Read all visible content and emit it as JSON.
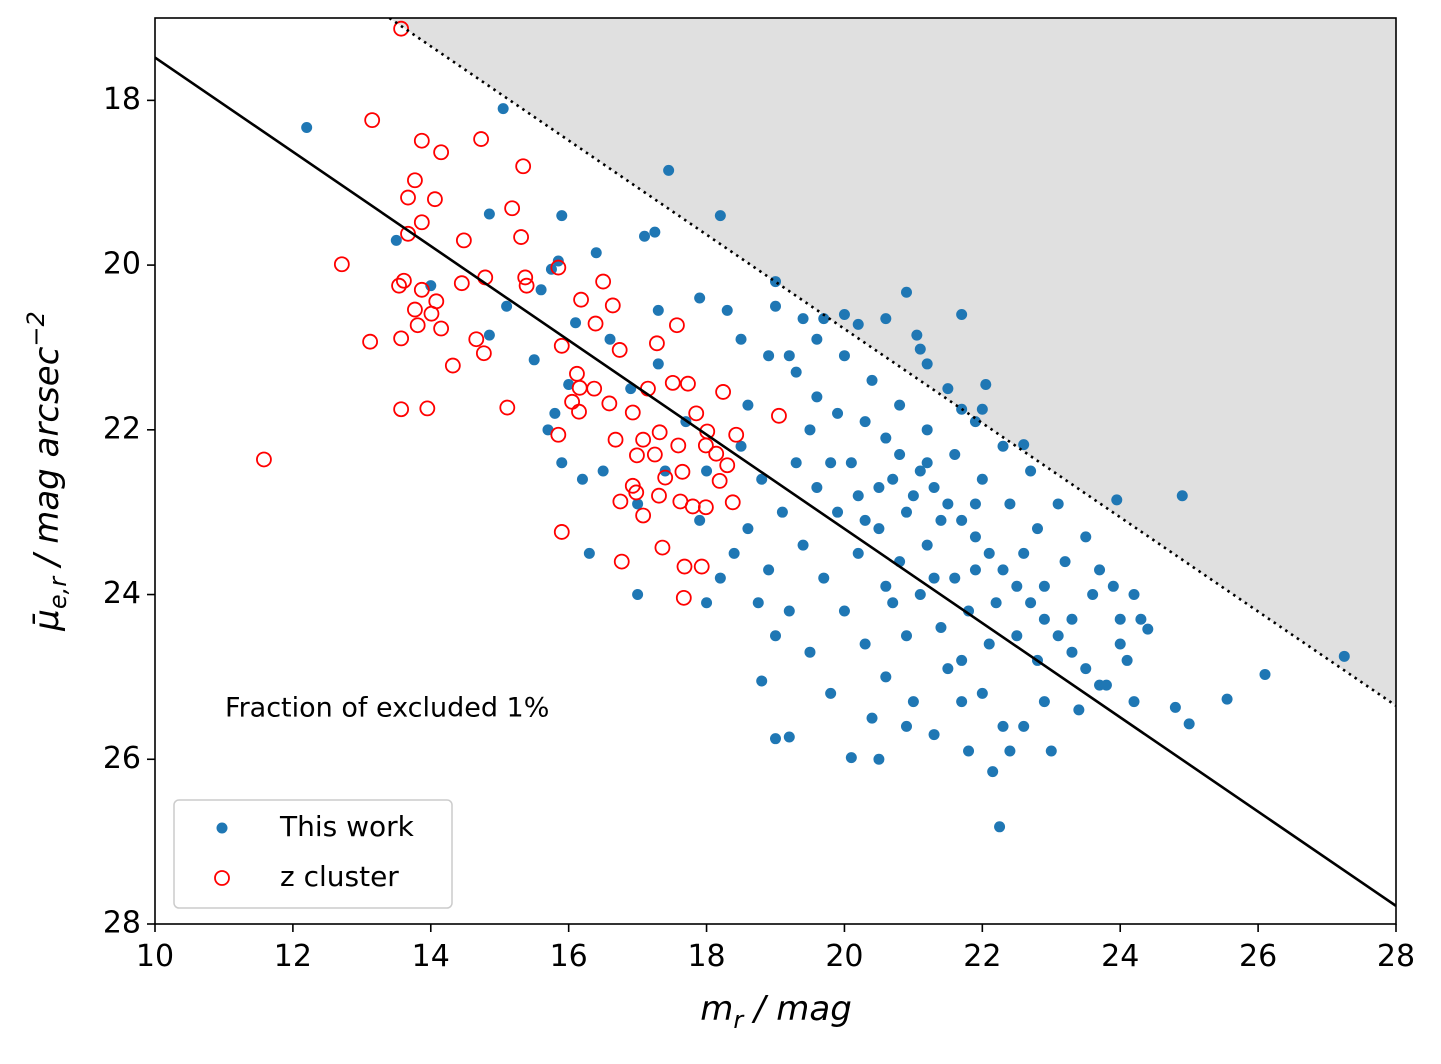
{
  "chart_data": {
    "type": "scatter",
    "xlabel": {
      "main": "m",
      "sub": "r",
      "rest": " / mag"
    },
    "ylabel": {
      "main": "μ̄",
      "sub": "e,r",
      "rest": " / mag arcsec",
      "sup": "−2"
    },
    "annotation": "Fraction of excluded 1%",
    "xlim": [
      10,
      28
    ],
    "xticks": [
      10,
      12,
      14,
      16,
      18,
      20,
      22,
      24,
      26,
      28
    ],
    "ylim": [
      28,
      17
    ],
    "yticks": [
      18,
      20,
      22,
      24,
      26,
      28
    ],
    "legend": "lower left",
    "shade": {
      "x": [
        13.4,
        28
      ],
      "values": [
        17,
        25.35
      ],
      "color": "#e0e0e0"
    },
    "lines": [
      {
        "x": [
          10,
          28
        ],
        "values": [
          17.48,
          27.78
        ],
        "color": "#000000",
        "dash": "solid"
      },
      {
        "x": [
          13.4,
          28
        ],
        "values": [
          17,
          25.35
        ],
        "color": "#000000",
        "dash": "dotted"
      }
    ],
    "series": [
      {
        "name": "This work",
        "color": "#1f77b4",
        "marker": "filled",
        "x": [
          12.2,
          15.05,
          17.45,
          18.2,
          15.9,
          14.85,
          17.1,
          17.25,
          19.0,
          20.9,
          21.7,
          20.6,
          20.2,
          21.05,
          21.1,
          22.05,
          22.0,
          21.7,
          22.6,
          23.95,
          24.9,
          27.25,
          26.1,
          25.55,
          25.0,
          24.8,
          24.4,
          22.25,
          22.15,
          20.5,
          20.1,
          19.0,
          19.2,
          18.8,
          18.75,
          18.0,
          17.0,
          16.3,
          15.9,
          15.8,
          15.5,
          16.4,
          15.85,
          15.6,
          15.75,
          16.1,
          17.3,
          17.9,
          18.3,
          19.0,
          19.4,
          19.7,
          18.5,
          18.9,
          19.3,
          19.6,
          19.9,
          20.3,
          20.6,
          20.8,
          21.1,
          21.3,
          21.5,
          21.7,
          21.9,
          22.1,
          22.3,
          22.5,
          22.7,
          22.9,
          23.1,
          23.3,
          23.5,
          23.7,
          24.0,
          24.2,
          24.1,
          23.6,
          23.2,
          22.8,
          22.4,
          22.0,
          21.6,
          21.2,
          20.8,
          20.4,
          20.0,
          19.5,
          19.8,
          20.2,
          20.5,
          20.8,
          21.1,
          21.4,
          21.7,
          22.0,
          22.3,
          21.0,
          20.6,
          20.3,
          20.0,
          19.7,
          19.4,
          19.1,
          18.8,
          18.5,
          18.6,
          18.9,
          19.2,
          19.5,
          19.8,
          20.4,
          21.3,
          21.8,
          22.6,
          23.0,
          22.9,
          23.4,
          23.8,
          24.2,
          24.0,
          23.9,
          23.5,
          23.1,
          22.7,
          22.3,
          21.9,
          21.5,
          21.2,
          21.6,
          21.2,
          20.9,
          20.7,
          21.4,
          21.8,
          22.1,
          22.5,
          22.2,
          21.9,
          21.3,
          20.6,
          20.2,
          19.9,
          19.6,
          20.1,
          20.5,
          20.9,
          21.5,
          22.8,
          23.3,
          22.6,
          21.0,
          20.3,
          19.3,
          18.4,
          17.9,
          18.2,
          19.0,
          20.7,
          21.7,
          22.4,
          20.9,
          24.3,
          23.7,
          22.9,
          21.9,
          21.2,
          16.6,
          17.3,
          16.9,
          17.7,
          18.0,
          17.4,
          16.5,
          15.7,
          17.0,
          16.2,
          14.0,
          14.85,
          13.5,
          15.1,
          16.0,
          18.6,
          19.2,
          20.0,
          19.6
        ],
        "values": [
          18.33,
          18.1,
          18.85,
          19.4,
          19.4,
          19.38,
          19.65,
          19.6,
          20.2,
          20.33,
          20.6,
          20.65,
          20.72,
          20.85,
          21.02,
          21.45,
          21.75,
          21.75,
          22.18,
          22.85,
          22.8,
          24.75,
          24.97,
          25.27,
          25.57,
          25.37,
          24.42,
          26.82,
          26.15,
          26.0,
          25.98,
          25.75,
          25.73,
          25.05,
          24.1,
          24.1,
          24.0,
          23.5,
          22.4,
          21.8,
          21.15,
          19.85,
          19.95,
          20.3,
          20.05,
          20.7,
          20.55,
          20.4,
          20.55,
          20.5,
          20.65,
          20.65,
          20.9,
          21.1,
          21.3,
          21.6,
          21.8,
          21.9,
          22.1,
          22.3,
          22.5,
          22.7,
          22.9,
          23.1,
          23.3,
          23.5,
          23.7,
          23.9,
          24.1,
          24.3,
          24.5,
          24.7,
          24.9,
          25.1,
          24.3,
          24.0,
          24.8,
          24.0,
          23.6,
          23.2,
          22.9,
          22.6,
          22.3,
          22.0,
          21.7,
          21.4,
          21.1,
          22.0,
          22.4,
          22.8,
          23.2,
          23.6,
          24.0,
          24.4,
          24.8,
          25.2,
          25.6,
          25.3,
          25.0,
          24.6,
          24.2,
          23.8,
          23.4,
          23.0,
          22.6,
          22.2,
          23.2,
          23.7,
          24.2,
          24.7,
          25.2,
          25.5,
          25.7,
          25.9,
          25.6,
          25.9,
          25.3,
          25.4,
          25.1,
          25.3,
          24.6,
          23.9,
          23.3,
          22.9,
          22.5,
          22.2,
          21.9,
          21.5,
          21.2,
          23.8,
          23.4,
          23.0,
          22.6,
          23.1,
          24.2,
          24.6,
          24.5,
          24.1,
          23.7,
          23.8,
          23.9,
          23.5,
          23.0,
          22.7,
          22.4,
          22.7,
          24.5,
          24.9,
          24.8,
          24.3,
          23.5,
          22.8,
          23.1,
          22.4,
          23.5,
          23.1,
          23.8,
          24.5,
          24.1,
          25.3,
          25.9,
          25.6,
          24.3,
          23.7,
          23.9,
          22.9,
          22.4,
          20.9,
          21.2,
          21.5,
          21.9,
          22.5,
          22.5,
          22.5,
          22.0,
          22.9,
          22.6,
          20.25,
          20.85,
          19.7,
          20.5,
          21.45,
          21.7,
          21.1,
          20.6,
          20.9
        ]
      },
      {
        "name": "z cluster",
        "color": "#ff0000",
        "marker": "hollow",
        "x": [
          13.57,
          13.15,
          13.87,
          14.73,
          14.15,
          15.34,
          13.77,
          13.67,
          14.06,
          15.18,
          13.87,
          13.67,
          15.31,
          14.48,
          12.71,
          15.85,
          14.79,
          15.37,
          13.61,
          16.5,
          13.54,
          14.45,
          15.39,
          13.87,
          16.18,
          14.08,
          16.64,
          13.77,
          14.01,
          16.39,
          17.57,
          13.81,
          14.15,
          13.12,
          13.57,
          14.66,
          17.28,
          15.9,
          16.74,
          14.77,
          14.32,
          16.12,
          17.51,
          17.15,
          16.16,
          16.37,
          17.73,
          18.24,
          17.85,
          16.05,
          16.59,
          13.57,
          13.95,
          15.11,
          19.05,
          16.15,
          16.93,
          17.32,
          18.01,
          18.43,
          15.85,
          16.68,
          17.08,
          17.59,
          17.99,
          18.14,
          16.99,
          17.25,
          11.58,
          18.3,
          18.19,
          17.4,
          17.65,
          16.93,
          16.98,
          17.31,
          16.75,
          17.62,
          18.38,
          17.08,
          17.8,
          17.99,
          15.9,
          17.36,
          16.77,
          17.68,
          17.93,
          17.67
        ],
        "values": [
          17.13,
          18.24,
          18.49,
          18.47,
          18.63,
          18.8,
          18.97,
          19.18,
          19.2,
          19.31,
          19.48,
          19.62,
          19.66,
          19.7,
          19.99,
          20.03,
          20.15,
          20.15,
          20.19,
          20.2,
          20.25,
          20.22,
          20.25,
          20.3,
          20.42,
          20.44,
          20.49,
          20.54,
          20.59,
          20.71,
          20.73,
          20.73,
          20.77,
          20.93,
          20.89,
          20.9,
          20.95,
          20.98,
          21.03,
          21.07,
          21.22,
          21.32,
          21.43,
          21.5,
          21.49,
          21.5,
          21.44,
          21.54,
          21.8,
          21.66,
          21.68,
          21.75,
          21.74,
          21.73,
          21.83,
          21.78,
          21.79,
          22.03,
          22.02,
          22.06,
          22.06,
          22.12,
          22.12,
          22.19,
          22.19,
          22.29,
          22.31,
          22.3,
          22.36,
          22.43,
          22.62,
          22.58,
          22.51,
          22.68,
          22.76,
          22.8,
          22.87,
          22.87,
          22.88,
          23.04,
          22.93,
          22.94,
          23.24,
          23.43,
          23.6,
          23.66,
          23.66,
          24.04
        ]
      }
    ]
  }
}
